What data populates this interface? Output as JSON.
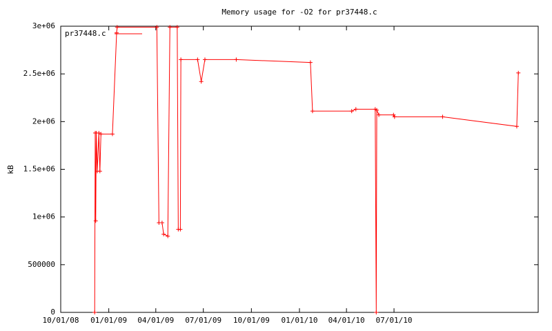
{
  "chart_data": {
    "type": "line",
    "title": "Memory usage for -O2 for pr37448.c",
    "ylabel": "kB",
    "x": [
      "12/05/08",
      "12/06/08",
      "12/07/08",
      "12/08/08",
      "12/10/08",
      "12/13/08",
      "12/15/08",
      "12/17/08",
      "01/08/09",
      "01/16/09",
      "01/17/09",
      "04/03/09",
      "04/07/09",
      "04/13/09",
      "04/16/09",
      "04/24/09",
      "04/28/09",
      "05/12/09",
      "05/14/09",
      "05/18/09",
      "05/19/09",
      "06/20/09",
      "06/27/09",
      "07/04/09",
      "09/02/09",
      "01/22/10",
      "01/26/10",
      "04/11/10",
      "04/19/10",
      "05/26/10",
      "05/28/10",
      "05/29/10",
      "06/02/10",
      "06/30/10",
      "07/02/10",
      "10/02/10",
      "02/21/11",
      "02/24/11"
    ],
    "series": [
      {
        "name": "pr37448.c",
        "color": "#ff0000",
        "values": [
          0,
          1880000,
          960000,
          1880000,
          1480000,
          1880000,
          1480000,
          1870000,
          1870000,
          2930000,
          2990000,
          2990000,
          940000,
          940000,
          820000,
          800000,
          2990000,
          2990000,
          870000,
          870000,
          2650000,
          2650000,
          2420000,
          2650000,
          2650000,
          2620000,
          2110000,
          2110000,
          2130000,
          2130000,
          0,
          2120000,
          2070000,
          2070000,
          2050000,
          2050000,
          1950000,
          2510000
        ]
      }
    ],
    "xlim": [
      "10/01/08",
      "04/03/11"
    ],
    "xticks": [
      "10/01/08",
      "01/01/09",
      "04/01/09",
      "07/01/09",
      "10/01/09",
      "01/01/10",
      "04/01/10",
      "07/01/10"
    ],
    "ylim": [
      0,
      3000000
    ],
    "yticks": [
      0,
      500000,
      {
        "value": 1000000,
        "label": "1e+06"
      },
      {
        "value": 1500000,
        "label": "1.5e+06"
      },
      {
        "value": 2000000,
        "label": "2e+06"
      },
      {
        "value": 2500000,
        "label": "2.5e+06"
      },
      {
        "value": 3000000,
        "label": "3e+06"
      }
    ],
    "legend": "top-left"
  }
}
